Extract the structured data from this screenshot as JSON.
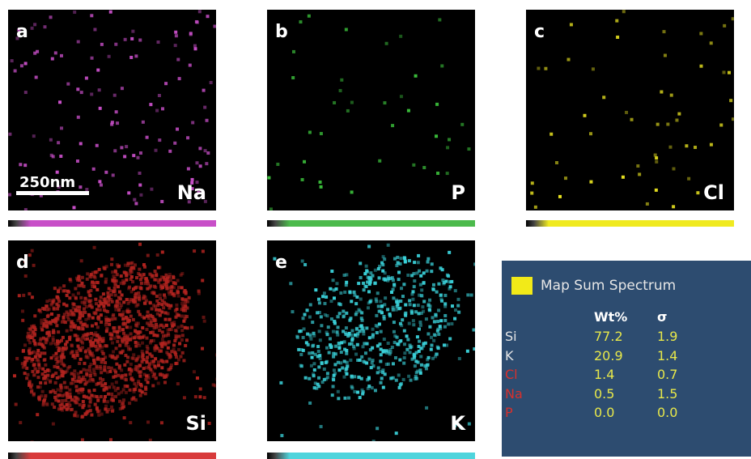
{
  "panels": [
    {
      "letter": "a",
      "element": "Na"
    },
    {
      "letter": "b",
      "element": "P"
    },
    {
      "letter": "c",
      "element": "Cl"
    },
    {
      "letter": "d",
      "element": "Si"
    },
    {
      "letter": "e",
      "element": "K"
    }
  ],
  "scale_bar": "250nm",
  "legend": {
    "title": "Map Sum Spectrum",
    "headers": [
      "Wt%",
      "σ"
    ],
    "rows": [
      [
        "Si",
        "77.2",
        "1.9"
      ],
      [
        "K",
        "20.9",
        "1.4"
      ],
      [
        "Cl",
        "1.4",
        "0.7"
      ],
      [
        "Na",
        "0.5",
        "1.5"
      ],
      [
        "P",
        "0.0",
        "0.0"
      ]
    ]
  }
}
